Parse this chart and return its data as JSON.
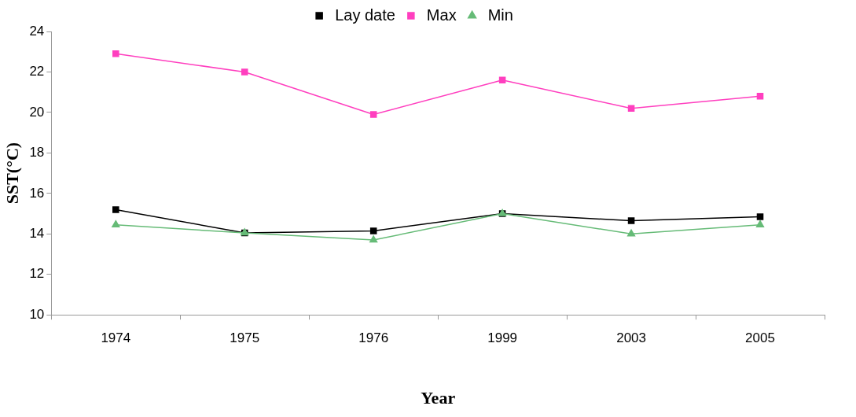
{
  "chart_data": {
    "type": "line",
    "xlabel": "Year",
    "ylabel": "SST(°C)",
    "categories": [
      "1974",
      "1975",
      "1976",
      "1999",
      "2003",
      "2005"
    ],
    "series": [
      {
        "name": "Lay date",
        "color": "#000000",
        "marker": "square",
        "values": [
          15.2,
          14.05,
          14.15,
          15.0,
          14.65,
          14.85
        ]
      },
      {
        "name": "Max",
        "color": "#ff3fbf",
        "marker": "square",
        "values": [
          22.9,
          22.0,
          19.9,
          21.6,
          20.2,
          20.8
        ]
      },
      {
        "name": "Min",
        "color": "#66bb77",
        "marker": "triangle",
        "values": [
          14.45,
          14.05,
          13.7,
          15.0,
          14.0,
          14.45
        ]
      }
    ],
    "ylim": [
      10,
      24
    ],
    "yticks": [
      10,
      12,
      14,
      16,
      18,
      20,
      22,
      24
    ],
    "grid": false,
    "legend": "top",
    "line_style": "solid"
  }
}
